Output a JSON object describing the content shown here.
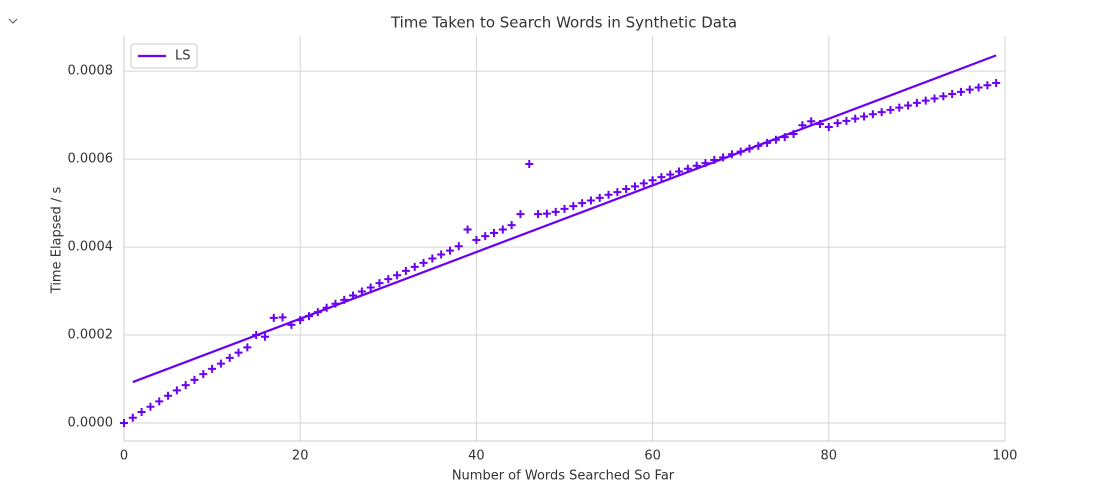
{
  "chart_data": {
    "type": "scatter",
    "title": "Time Taken to Search Words in Synthetic Data",
    "x_label": "Number of Words Searched So Far",
    "y_label": "Time Elapsed / s",
    "xlim": [
      0,
      100
    ],
    "xticks": [
      0,
      20,
      40,
      60,
      80,
      100
    ],
    "ylim": [
      -4.1e-05,
      0.00088
    ],
    "yticks": [
      {
        "value": 0,
        "label": "0.0000"
      },
      {
        "value": 0.0002,
        "label": "0.0002"
      },
      {
        "value": 0.0004,
        "label": "0.0004"
      },
      {
        "value": 0.0006,
        "label": "0.0006"
      },
      {
        "value": 0.0008,
        "label": "0.0008"
      }
    ],
    "grid": true,
    "legend": "upper left",
    "series": [
      {
        "name": "LS",
        "color": "#6a00f4",
        "x": [
          1,
          99
        ],
        "values": [
          9.3e-05,
          0.000836
        ]
      }
    ],
    "points": {
      "color": "#6a00f4",
      "x": [
        0,
        1,
        2,
        3,
        4,
        5,
        6,
        7,
        8,
        9,
        10,
        11,
        12,
        13,
        14,
        15,
        16,
        17,
        18,
        19,
        20,
        21,
        22,
        23,
        24,
        25,
        26,
        27,
        28,
        29,
        30,
        31,
        32,
        33,
        34,
        35,
        36,
        37,
        38,
        39,
        40,
        41,
        42,
        43,
        44,
        45,
        46,
        47,
        48,
        49,
        50,
        51,
        52,
        53,
        54,
        55,
        56,
        57,
        58,
        59,
        60,
        61,
        62,
        63,
        64,
        65,
        66,
        67,
        68,
        69,
        70,
        71,
        72,
        73,
        74,
        75,
        76,
        77,
        78,
        79,
        80,
        81,
        82,
        83,
        84,
        85,
        86,
        87,
        88,
        89,
        90,
        91,
        92,
        93,
        94,
        95,
        96,
        97,
        98,
        99
      ],
      "values": [
        0,
        1.2e-05,
        2.5e-05,
        3.7e-05,
        4.9e-05,
        6.2e-05,
        7.4e-05,
        8.6e-05,
        9.8e-05,
        0.000111,
        0.000123,
        0.000135,
        0.000148,
        0.00016,
        0.000172,
        0.0002,
        0.000196,
        0.000239,
        0.00024,
        0.000223,
        0.000234,
        0.000243,
        0.000252,
        0.000262,
        0.000271,
        0.00028,
        0.00029,
        0.000299,
        0.000308,
        0.000318,
        0.000327,
        0.000336,
        0.000346,
        0.000355,
        0.000364,
        0.000374,
        0.000383,
        0.000392,
        0.000402,
        0.00044,
        0.000416,
        0.000425,
        0.000432,
        0.00044,
        0.00045,
        0.000475,
        0.000589,
        0.000475,
        0.000476,
        0.00048,
        0.000487,
        0.000493,
        0.0005,
        0.000506,
        0.000512,
        0.000519,
        0.000525,
        0.000532,
        0.000538,
        0.000545,
        0.000552,
        0.000559,
        0.000565,
        0.000572,
        0.000578,
        0.000585,
        0.000591,
        0.000598,
        0.000604,
        0.000611,
        0.000617,
        0.000624,
        0.00063,
        0.000637,
        0.000644,
        0.00065,
        0.000657,
        0.000677,
        0.000686,
        0.00068,
        0.000673,
        0.000682,
        0.000687,
        0.000692,
        0.000697,
        0.000702,
        0.000707,
        0.000712,
        0.000717,
        0.000722,
        0.000728,
        0.000733,
        0.000738,
        0.000743,
        0.000748,
        0.000753,
        0.000758,
        0.000763,
        0.000768,
        0.000773
      ]
    }
  }
}
